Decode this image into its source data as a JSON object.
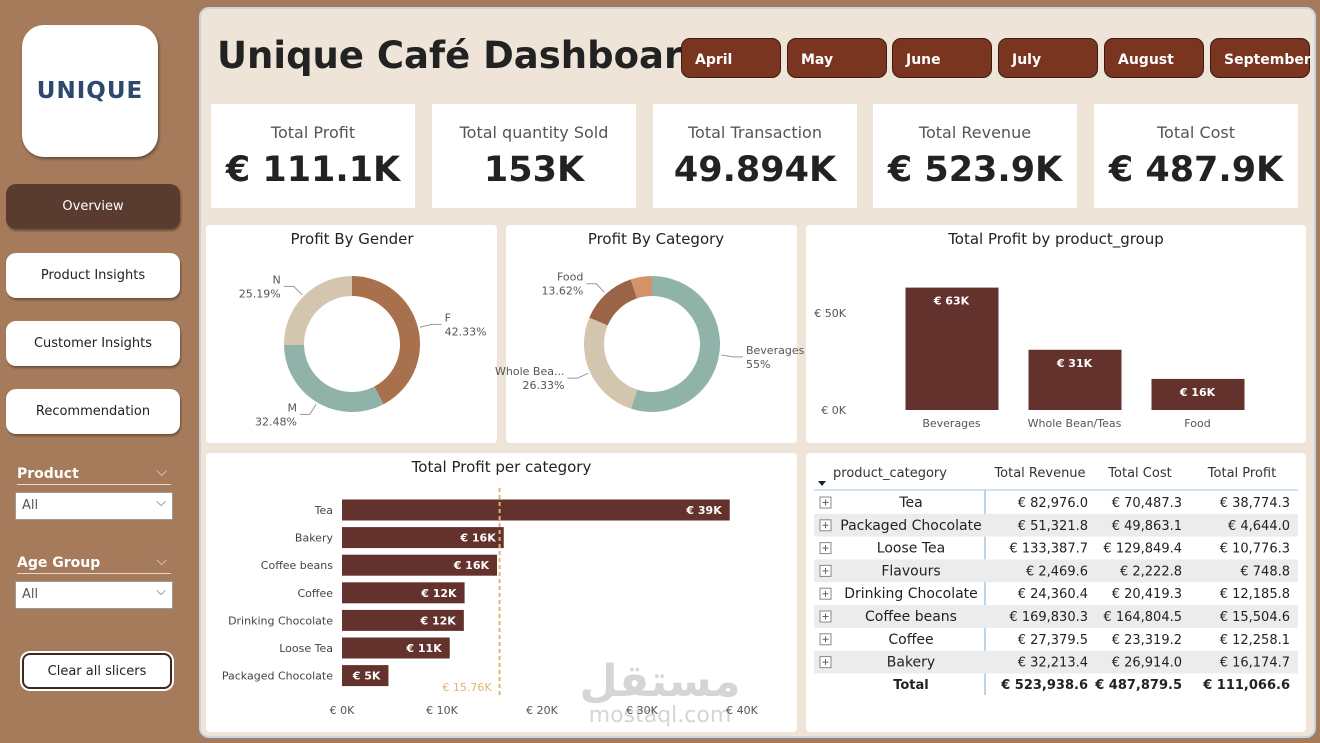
{
  "logo": "UNIQUE",
  "nav": [
    "Overview",
    "Product Insights",
    "Customer Insights",
    "Recommendation"
  ],
  "filters": [
    {
      "label": "Product",
      "value": "All"
    },
    {
      "label": "Age Group",
      "value": "All"
    }
  ],
  "clear_button": "Clear all slicers",
  "title": "Unique Café Dashboard",
  "months": [
    "April",
    "May",
    "June",
    "July",
    "August",
    "September"
  ],
  "kpis": [
    {
      "label": "Total Profit",
      "value": "€ 111.1K"
    },
    {
      "label": "Total quantity Sold",
      "value": "153K"
    },
    {
      "label": "Total Transaction",
      "value": "49.894K"
    },
    {
      "label": "Total Revenue",
      "value": "€ 523.9K"
    },
    {
      "label": "Total Cost",
      "value": "€ 487.9K"
    }
  ],
  "chart_data": [
    {
      "type": "donut",
      "title": "Profit By Gender",
      "categories": [
        "F",
        "M",
        "N"
      ],
      "values": [
        42.33,
        32.48,
        25.19
      ],
      "value_labels": [
        "42.33%",
        "32.48%",
        "25.19%"
      ],
      "colors": [
        "#a8704c",
        "#8fb3a8",
        "#d3c5ae"
      ]
    },
    {
      "type": "donut",
      "title": "Profit By Category",
      "categories": [
        "Beverages",
        "Whole Bea...",
        "Food",
        null
      ],
      "values": [
        55,
        26.33,
        13.62,
        5.05
      ],
      "value_labels": [
        "55%",
        "26.33%",
        "13.62%",
        null
      ],
      "colors": [
        "#8fb3a8",
        "#d3c5ae",
        "#9c6446",
        "#d4946a"
      ]
    },
    {
      "type": "bar",
      "title": "Total Profit by product_group",
      "categories": [
        "Beverages",
        "Whole Bean/Teas",
        "Food"
      ],
      "values": [
        63000,
        31000,
        16000
      ],
      "value_labels": [
        "€ 63K",
        "€ 31K",
        "€ 16K"
      ],
      "color": "#64322d",
      "ylim": [
        0,
        70000
      ],
      "yticks": [
        {
          "value": 0,
          "label": "€ 0K"
        },
        {
          "value": 50000,
          "label": "€ 50K"
        }
      ]
    },
    {
      "type": "hbar",
      "title": "Total Profit per category",
      "categories": [
        "Tea",
        "Bakery",
        "Coffee beans",
        "Coffee",
        "Drinking Chocolate",
        "Loose Tea",
        "Packaged Chocolate"
      ],
      "values": [
        38774.3,
        16174.7,
        15504.6,
        12258.1,
        12185.8,
        10776.3,
        4644.0
      ],
      "value_labels": [
        "€ 39K",
        "€ 16K",
        "€ 16K",
        "€ 12K",
        "€ 12K",
        "€ 11K",
        "€ 5K"
      ],
      "color": "#64322d",
      "xlim": [
        0,
        40000
      ],
      "xticks": [
        {
          "value": 0,
          "label": "€ 0K"
        },
        {
          "value": 10000,
          "label": "€ 10K"
        },
        {
          "value": 20000,
          "label": "€ 20K"
        },
        {
          "value": 30000,
          "label": "€ 30K"
        },
        {
          "value": 40000,
          "label": "€ 40K"
        }
      ],
      "reference_line": {
        "value": 15760,
        "label": "€ 15.76K",
        "color": "#e2b373"
      }
    }
  ],
  "table": {
    "columns": [
      "product_category",
      "Total Revenue",
      "Total Cost",
      "Total Profit"
    ],
    "rows": [
      [
        "Tea",
        "€ 82,976.0",
        "€ 70,487.3",
        "€ 38,774.3"
      ],
      [
        "Packaged Chocolate",
        "€ 51,321.8",
        "€ 49,863.1",
        "€ 4,644.0"
      ],
      [
        "Loose Tea",
        "€ 133,387.7",
        "€ 129,849.4",
        "€ 10,776.3"
      ],
      [
        "Flavours",
        "€ 2,469.6",
        "€ 2,222.8",
        "€ 748.8"
      ],
      [
        "Drinking Chocolate",
        "€ 24,360.4",
        "€ 20,419.3",
        "€ 12,185.8"
      ],
      [
        "Coffee beans",
        "€ 169,830.3",
        "€ 164,804.5",
        "€ 15,504.6"
      ],
      [
        "Coffee",
        "€ 27,379.5",
        "€ 23,319.2",
        "€ 12,258.1"
      ],
      [
        "Bakery",
        "€ 32,213.4",
        "€ 26,914.0",
        "€ 16,174.7"
      ]
    ],
    "total": [
      "Total",
      "€ 523,938.6",
      "€ 487,879.5",
      "€ 111,066.6"
    ]
  },
  "watermark": {
    "arabic": "مستقل",
    "url": "mostaql.com"
  }
}
